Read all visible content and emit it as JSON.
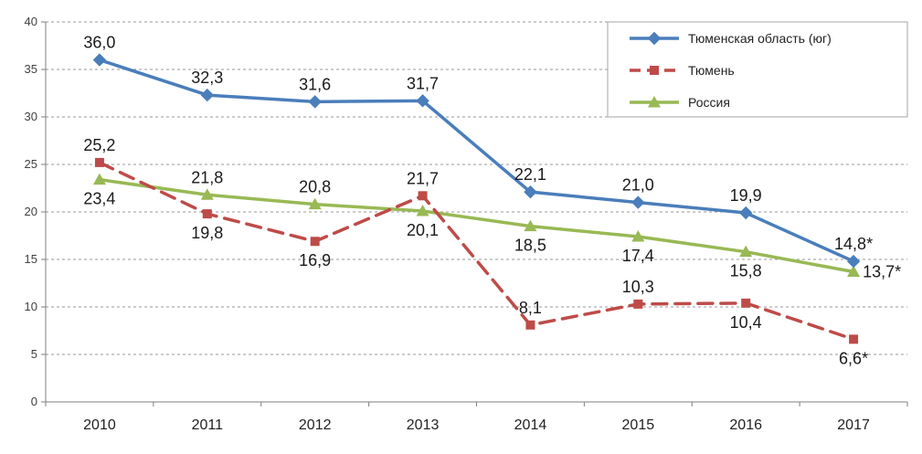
{
  "chart_data": {
    "type": "line",
    "title": "",
    "xlabel": "",
    "ylabel": "",
    "x": [
      "2010",
      "2011",
      "2012",
      "2013",
      "2014",
      "2015",
      "2016",
      "2017"
    ],
    "ylim": [
      0,
      40
    ],
    "yticks": [
      0,
      5,
      10,
      15,
      20,
      25,
      30,
      35,
      40
    ],
    "grid": true,
    "legend_position": "top-right",
    "series": [
      {
        "name": "Тюменская область (юг)",
        "color": "#4a7ebb",
        "marker": "diamond",
        "dash": "solid",
        "values": [
          36.0,
          32.3,
          31.6,
          31.7,
          22.1,
          21.0,
          19.9,
          14.8
        ],
        "labels": [
          "36,0",
          "32,3",
          "31,6",
          "31,7",
          "22,1",
          "21,0",
          "19,9",
          "14,8*"
        ],
        "label_positions": [
          "above",
          "above",
          "above",
          "above",
          "above",
          "above",
          "above",
          "above"
        ]
      },
      {
        "name": "Тюмень",
        "color": "#be4b48",
        "marker": "square",
        "dash": "dashed",
        "values": [
          25.2,
          19.8,
          16.9,
          21.7,
          8.1,
          10.3,
          10.4,
          6.6
        ],
        "labels": [
          "25,2",
          "19,8",
          "16,9",
          "21,7",
          "8,1",
          "10,3",
          "10,4",
          "6,6*"
        ],
        "label_positions": [
          "above",
          "below",
          "below",
          "above",
          "above",
          "above",
          "below",
          "below"
        ]
      },
      {
        "name": "Россия",
        "color": "#98b954",
        "marker": "triangle",
        "dash": "solid",
        "values": [
          23.4,
          21.8,
          20.8,
          20.1,
          18.5,
          17.4,
          15.8,
          13.7
        ],
        "labels": [
          "23,4",
          "21,8",
          "20,8",
          "20,1",
          "18,5",
          "17,4",
          "15,8",
          "13,7*"
        ],
        "label_positions": [
          "below",
          "above",
          "above",
          "below",
          "below",
          "below",
          "below",
          "right"
        ]
      }
    ]
  }
}
